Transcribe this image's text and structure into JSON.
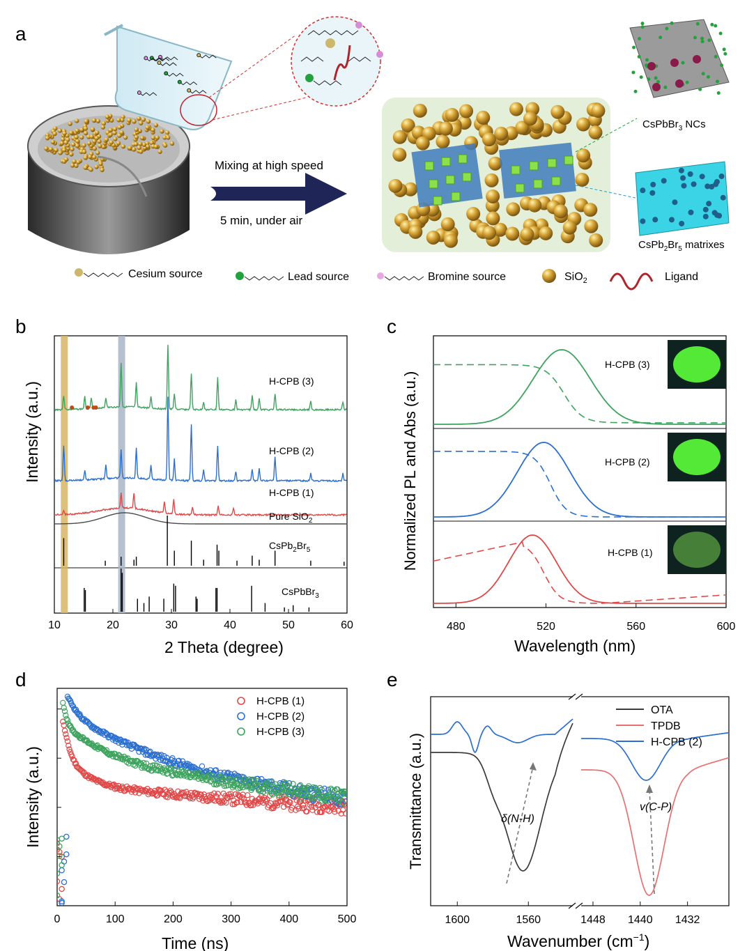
{
  "panel_letters": {
    "a": "a",
    "b": "b",
    "c": "c",
    "d": "d",
    "e": "e"
  },
  "schematic": {
    "arrow_top": "Mixing at high speed",
    "arrow_bottom": "5 min, under air",
    "label_ncs": "CsPbBr",
    "label_ncs_sub": "3",
    "label_ncs_tail": " NCs",
    "label_matrix": "CsPb",
    "label_matrix_sub1": "2",
    "label_matrix_mid": "Br",
    "label_matrix_sub2": "5",
    "label_matrix_tail": " matrixes",
    "legend": {
      "cesium": "Cesium source",
      "lead": "Lead source",
      "bromine": "Bromine source",
      "sio2": "SiO",
      "sio2_sub": "2",
      "ligand": "Ligand"
    },
    "colors": {
      "sio2": "#c9962a",
      "ligand": "#b0242c",
      "arrow": "#1f2556",
      "cs": "#cdb76a",
      "pb": "#23a13c",
      "br": "#d98cd6"
    }
  },
  "chart_data": [
    {
      "panel": "b",
      "type": "line",
      "xlabel": "2 Theta (degree)",
      "ylabel": "Intensity (a.u.)",
      "xlim": [
        10,
        60
      ],
      "xticks": [
        10,
        20,
        30,
        40,
        50,
        60
      ],
      "highlight_bands": [
        {
          "x": 11.7,
          "color": "#d8b567"
        },
        {
          "x": 21.5,
          "color": "#a9b6c8"
        }
      ],
      "series": [
        {
          "name": "H-CPB (3)",
          "color": "#3da35d",
          "peaks": [
            [
              11.6,
              0.35
            ],
            [
              15.2,
              0.3
            ],
            [
              16.3,
              0.28
            ],
            [
              18.8,
              0.25
            ],
            [
              21.4,
              1.1
            ],
            [
              24.0,
              0.6
            ],
            [
              26.5,
              0.3
            ],
            [
              29.4,
              1.6
            ],
            [
              30.5,
              0.4
            ],
            [
              33.4,
              0.9
            ],
            [
              35.5,
              0.2
            ],
            [
              37.9,
              0.8
            ],
            [
              41.0,
              0.25
            ],
            [
              43.8,
              0.35
            ],
            [
              45.0,
              0.3
            ],
            [
              47.7,
              0.4
            ],
            [
              53.8,
              0.2
            ],
            [
              59.3,
              0.2
            ]
          ]
        },
        {
          "name": "H-CPB (2)",
          "color": "#2a6fd0",
          "peaks": [
            [
              11.6,
              0.75
            ],
            [
              15.2,
              0.2
            ],
            [
              18.8,
              0.3
            ],
            [
              21.4,
              0.6
            ],
            [
              24.0,
              0.65
            ],
            [
              26.5,
              0.3
            ],
            [
              29.4,
              1.75
            ],
            [
              30.5,
              0.45
            ],
            [
              33.4,
              1.2
            ],
            [
              35.5,
              0.25
            ],
            [
              37.9,
              0.75
            ],
            [
              41.0,
              0.2
            ],
            [
              43.8,
              0.25
            ],
            [
              45.0,
              0.25
            ],
            [
              47.7,
              0.5
            ],
            [
              53.8,
              0.15
            ],
            [
              59.3,
              0.15
            ]
          ]
        },
        {
          "name": "H-CPB (1)",
          "color": "#e04848",
          "peaks": [
            [
              11.6,
              0.15
            ],
            [
              21.4,
              0.5
            ],
            [
              23.6,
              0.5
            ],
            [
              28.8,
              0.4
            ],
            [
              30.4,
              0.5
            ],
            [
              33.6,
              0.25
            ],
            [
              38.0,
              0.3
            ],
            [
              40.6,
              0.25
            ]
          ]
        },
        {
          "name": "Pure SiO",
          "name_sub": "2",
          "color": "#4a4a4a",
          "peaks": []
        }
      ],
      "references": [
        {
          "name": "CsPb",
          "name_sub1": "2",
          "name_mid": "Br",
          "name_sub2": "5",
          "sticks": [
            [
              11.6,
              0.55
            ],
            [
              18.7,
              0.1
            ],
            [
              21.4,
              0.18
            ],
            [
              23.6,
              0.12
            ],
            [
              24.0,
              0.18
            ],
            [
              29.3,
              1.0
            ],
            [
              30.5,
              0.3
            ],
            [
              33.4,
              0.5
            ],
            [
              35.5,
              0.12
            ],
            [
              37.8,
              0.42
            ],
            [
              38.1,
              0.3
            ],
            [
              41.2,
              0.1
            ],
            [
              43.8,
              0.2
            ],
            [
              45.0,
              0.12
            ],
            [
              47.7,
              0.3
            ],
            [
              53.8,
              0.1
            ],
            [
              59.5,
              0.08
            ]
          ]
        },
        {
          "name": "CsPbBr",
          "name_sub1": "3",
          "sticks": [
            [
              15.1,
              0.55
            ],
            [
              15.3,
              0.5
            ],
            [
              21.4,
              1.0
            ],
            [
              21.6,
              0.9
            ],
            [
              24.2,
              0.3
            ],
            [
              25.3,
              0.2
            ],
            [
              26.2,
              0.35
            ],
            [
              28.7,
              0.3
            ],
            [
              30.4,
              0.65
            ],
            [
              30.7,
              0.6
            ],
            [
              34.2,
              0.35
            ],
            [
              34.4,
              0.3
            ],
            [
              37.6,
              0.55
            ],
            [
              37.8,
              0.55
            ],
            [
              43.7,
              0.6
            ],
            [
              46.0,
              0.2
            ],
            [
              49.3,
              0.1
            ],
            [
              50.8,
              0.15
            ],
            [
              53.5,
              0.1
            ]
          ]
        }
      ]
    },
    {
      "panel": "c",
      "type": "line",
      "xlabel": "Wavelength (nm)",
      "ylabel": "Normalized PL and Abs (a.u.)",
      "xlim": [
        470,
        600
      ],
      "xticks": [
        480,
        520,
        560,
        600
      ],
      "series": [
        {
          "name": "H-CPB (3)",
          "color": "#3da35d",
          "pl_peak": 527,
          "pl_fwhm": 24,
          "abs_edge": 528
        },
        {
          "name": "H-CPB (2)",
          "color": "#2a6fd0",
          "pl_peak": 519,
          "pl_fwhm": 22,
          "abs_edge": 522
        },
        {
          "name": "H-CPB (1)",
          "color": "#e04848",
          "pl_peak": 514,
          "pl_fwhm": 20,
          "abs_edge": 519
        }
      ]
    },
    {
      "panel": "d",
      "type": "scatter",
      "xlabel": "Time (ns)",
      "ylabel": "Intensity (a.u.)",
      "xlim": [
        0,
        500
      ],
      "xticks": [
        0,
        100,
        200,
        300,
        400,
        500
      ],
      "yscale": "log",
      "legend_position": "top-right",
      "series": [
        {
          "name": "H-CPB (1)",
          "color": "#e04848",
          "a1": 0.62,
          "t1": 10,
          "a2": 0.18,
          "t2": 180
        },
        {
          "name": "H-CPB (2)",
          "color": "#2a6fd0",
          "a1": 0.4,
          "t1": 30,
          "a2": 0.6,
          "t2": 150
        },
        {
          "name": "H-CPB (3)",
          "color": "#3da35d",
          "a1": 0.55,
          "t1": 22,
          "a2": 0.42,
          "t2": 200
        }
      ]
    },
    {
      "panel": "e",
      "type": "line",
      "xlabel": "Wavenumber (cm",
      "xlabel_sup": "−1",
      "xlabel_tail": ")",
      "ylabel": "Transmittance (a.u.)",
      "broken_axis": true,
      "xlim_left": [
        1615,
        1535
      ],
      "xlim_right": [
        1450,
        1425
      ],
      "xticks_left": [
        1600,
        1560
      ],
      "xticks_right": [
        1448,
        1440,
        1432
      ],
      "legend_position": "top-right",
      "series": [
        {
          "name": "OTA",
          "color": "#3a3a3a"
        },
        {
          "name": "TPDB",
          "color": "#e87070"
        },
        {
          "name": "H-CPB (2)",
          "color": "#2a6fd0"
        }
      ],
      "annotations": {
        "left": "δ(N-H)",
        "right": "v(C-P)"
      }
    }
  ]
}
